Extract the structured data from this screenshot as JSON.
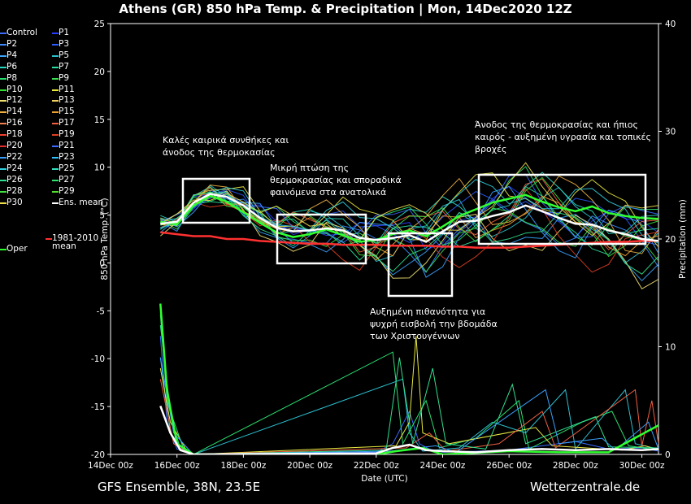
{
  "title": "Athens  (GR)  850 hPa Temp. & Precipitation | Mon, 14Dec2020 12Z",
  "footer_left": "GFS Ensemble, 38N, 23.5E",
  "footer_right": "Wetterzentrale.de",
  "legend": [
    {
      "label": "Control",
      "color": "#3a6cff"
    },
    {
      "label": "P1",
      "color": "#2a3cff"
    },
    {
      "label": "P2",
      "color": "#3a8cff"
    },
    {
      "label": "P3",
      "color": "#2a5cff"
    },
    {
      "label": "P4",
      "color": "#3aa6ff"
    },
    {
      "label": "P5",
      "color": "#2ac0d0"
    },
    {
      "label": "P6",
      "color": "#2ad8c0"
    },
    {
      "label": "P7",
      "color": "#2ae0a0"
    },
    {
      "label": "P8",
      "color": "#2ae070"
    },
    {
      "label": "P9",
      "color": "#3ae050"
    },
    {
      "label": "P10",
      "color": "#30e030"
    },
    {
      "label": "P11",
      "color": "#e8e840"
    },
    {
      "label": "P12",
      "color": "#f0e070"
    },
    {
      "label": "P13",
      "color": "#f0d060"
    },
    {
      "label": "P14",
      "color": "#f0b040"
    },
    {
      "label": "P15",
      "color": "#f0a030"
    },
    {
      "label": "P16",
      "color": "#f08050"
    },
    {
      "label": "P17",
      "color": "#f06040"
    },
    {
      "label": "P18",
      "color": "#f04030"
    },
    {
      "label": "P19",
      "color": "#e04020"
    },
    {
      "label": "P20",
      "color": "#e03030"
    },
    {
      "label": "P21",
      "color": "#3a6cff"
    },
    {
      "label": "P22",
      "color": "#3aa0ff"
    },
    {
      "label": "P23",
      "color": "#30c0ff"
    },
    {
      "label": "P24",
      "color": "#30d0e0"
    },
    {
      "label": "P25",
      "color": "#30e0c0"
    },
    {
      "label": "P26",
      "color": "#30e090"
    },
    {
      "label": "P27",
      "color": "#30e070"
    },
    {
      "label": "P28",
      "color": "#40e040"
    },
    {
      "label": "P29",
      "color": "#50e030"
    },
    {
      "label": "P30",
      "color": "#f0e050"
    },
    {
      "label": "Ens. mean",
      "color": "#ffffff"
    },
    {
      "label": "Oper",
      "color": "#30ff30"
    },
    {
      "label": "1981-2010 mean",
      "color": "#ff3030"
    }
  ],
  "annotations": [
    {
      "line1": "Καλές καιρικά συνθήκες και",
      "line2": "άνοδος της θερμοκασίας",
      "line3": ""
    },
    {
      "line1": "Μικρή πτώση της",
      "line2": "θερμοκρασίας και σποραδικά",
      "line3": "φαινόμενα στα ανατολικά"
    },
    {
      "line1": "Αυξημένη πιθανότητα για",
      "line2": "ψυχρή εισβολή την βδομάδα",
      "line3": "των Χριστουγέννων"
    },
    {
      "line1": "Άνοδος της θερμοκρασίας και ήπιος",
      "line2": "καιρός - αυξημένη υγρασία και τοπικές",
      "line3": "βροχές"
    }
  ],
  "chart_data": {
    "type": "line",
    "xlabel": "Date (UTC)",
    "ylabel": "850 hPa Temp. (°C)",
    "ylabel_right": "Precipitation (mm)",
    "ylim": [
      -20,
      25
    ],
    "ylim_right": [
      0,
      40
    ],
    "xlim_days": [
      0,
      16.5
    ],
    "x_ticks": [
      "14Dec 00z",
      "16Dec 00z",
      "18Dec 00z",
      "20Dec 00z",
      "22Dec 00z",
      "24Dec 00z",
      "26Dec 00z",
      "28Dec 00z",
      "30Dec 00z"
    ],
    "y_ticks": [
      25,
      20,
      15,
      10,
      5,
      0,
      -5,
      -10,
      -15,
      -20
    ],
    "y_ticks_right": [
      40,
      30,
      20,
      10,
      0
    ],
    "grid": false,
    "legend_placement": "left",
    "ens_mean": {
      "name": "Ens. mean",
      "points": [
        [
          1.5,
          4.1
        ],
        [
          2.0,
          4.3
        ],
        [
          2.5,
          6.3
        ],
        [
          3.0,
          7.2
        ],
        [
          3.5,
          6.9
        ],
        [
          4.0,
          6.0
        ],
        [
          4.5,
          4.7
        ],
        [
          5.0,
          3.7
        ],
        [
          5.5,
          3.3
        ],
        [
          6.0,
          3.4
        ],
        [
          6.5,
          3.6
        ],
        [
          7.0,
          3.4
        ],
        [
          7.5,
          2.6
        ],
        [
          8.0,
          2.4
        ],
        [
          8.5,
          2.6
        ],
        [
          9.0,
          2.9
        ],
        [
          9.5,
          2.2
        ],
        [
          10.0,
          3.3
        ],
        [
          10.5,
          4.3
        ],
        [
          11.0,
          4.4
        ],
        [
          11.5,
          4.9
        ],
        [
          12.0,
          5.3
        ],
        [
          12.5,
          6.0
        ],
        [
          13.0,
          5.4
        ],
        [
          13.5,
          4.7
        ],
        [
          14.0,
          4.1
        ],
        [
          14.5,
          4.0
        ],
        [
          15.0,
          3.4
        ],
        [
          15.5,
          3.0
        ],
        [
          16.0,
          2.5
        ],
        [
          16.5,
          2.3
        ]
      ]
    },
    "climatology": {
      "name": "1981-2010 mean",
      "points": [
        [
          1.5,
          3.2
        ],
        [
          2.0,
          3.0
        ],
        [
          2.5,
          2.8
        ],
        [
          3.0,
          2.8
        ],
        [
          3.5,
          2.5
        ],
        [
          4.0,
          2.5
        ],
        [
          4.5,
          2.3
        ],
        [
          5.0,
          2.2
        ],
        [
          5.5,
          2.1
        ],
        [
          6.0,
          2.0
        ],
        [
          6.5,
          2.0
        ],
        [
          7.0,
          1.9
        ],
        [
          7.5,
          1.9
        ],
        [
          8.0,
          1.9
        ],
        [
          8.5,
          1.8
        ],
        [
          9.0,
          1.8
        ],
        [
          9.5,
          1.8
        ],
        [
          10.0,
          1.7
        ],
        [
          10.5,
          1.7
        ],
        [
          11.0,
          1.6
        ],
        [
          11.5,
          1.6
        ],
        [
          12.0,
          1.6
        ],
        [
          12.5,
          1.7
        ],
        [
          13.0,
          1.8
        ],
        [
          13.5,
          1.9
        ],
        [
          14.0,
          2.0
        ],
        [
          14.5,
          2.1
        ],
        [
          15.0,
          2.2
        ],
        [
          15.5,
          2.2
        ],
        [
          16.0,
          2.3
        ],
        [
          16.5,
          2.3
        ]
      ]
    },
    "oper": {
      "name": "Oper",
      "points": [
        [
          1.5,
          4.3
        ],
        [
          2.0,
          4.0
        ],
        [
          2.5,
          6.0
        ],
        [
          3.0,
          7.0
        ],
        [
          3.5,
          6.4
        ],
        [
          4.0,
          5.3
        ],
        [
          4.5,
          4.2
        ],
        [
          5.0,
          3.2
        ],
        [
          5.5,
          2.7
        ],
        [
          6.0,
          3.0
        ],
        [
          6.5,
          3.5
        ],
        [
          7.0,
          2.9
        ],
        [
          7.5,
          2.2
        ],
        [
          8.0,
          2.4
        ],
        [
          8.5,
          3.0
        ],
        [
          9.0,
          3.4
        ],
        [
          9.5,
          2.8
        ],
        [
          10.0,
          3.8
        ],
        [
          10.5,
          4.9
        ],
        [
          11.0,
          5.6
        ],
        [
          11.5,
          6.3
        ],
        [
          12.0,
          6.7
        ],
        [
          12.5,
          7.1
        ],
        [
          13.0,
          6.4
        ],
        [
          13.5,
          5.8
        ],
        [
          14.0,
          5.4
        ],
        [
          14.5,
          5.9
        ],
        [
          15.0,
          5.2
        ],
        [
          15.5,
          4.9
        ],
        [
          16.0,
          4.7
        ],
        [
          16.5,
          4.6
        ]
      ]
    },
    "members": [
      {
        "name": "P1",
        "offset": 0.6,
        "amp": 1.6,
        "phase": 0.3
      },
      {
        "name": "P2",
        "offset": -0.8,
        "amp": 1.9,
        "phase": 1.1
      },
      {
        "name": "P3",
        "offset": 1.2,
        "amp": 1.4,
        "phase": 2.0
      },
      {
        "name": "P4",
        "offset": -1.5,
        "amp": 2.3,
        "phase": 2.7
      },
      {
        "name": "P5",
        "offset": 0.2,
        "amp": 2.6,
        "phase": 3.5
      },
      {
        "name": "P6",
        "offset": 1.8,
        "amp": 1.8,
        "phase": 4.2
      },
      {
        "name": "P7",
        "offset": -0.4,
        "amp": 2.1,
        "phase": 5.0
      },
      {
        "name": "P8",
        "offset": 0.9,
        "amp": 2.8,
        "phase": 5.7
      },
      {
        "name": "P9",
        "offset": -1.1,
        "amp": 1.5,
        "phase": 0.8
      },
      {
        "name": "P11",
        "offset": 2.3,
        "amp": 2.4,
        "phase": 1.6
      },
      {
        "name": "P12",
        "offset": -2.0,
        "amp": 2.7,
        "phase": 2.4
      },
      {
        "name": "P14",
        "offset": 1.4,
        "amp": 3.0,
        "phase": 3.1
      },
      {
        "name": "P15",
        "offset": -0.2,
        "amp": 1.7,
        "phase": 3.9
      },
      {
        "name": "P17",
        "offset": 0.7,
        "amp": 2.2,
        "phase": 4.6
      },
      {
        "name": "P19",
        "offset": -1.7,
        "amp": 2.9,
        "phase": 5.3
      },
      {
        "name": "P21",
        "offset": 1.0,
        "amp": 2.5,
        "phase": 6.0
      },
      {
        "name": "P22",
        "offset": -0.6,
        "amp": 3.2,
        "phase": 0.5
      },
      {
        "name": "P24",
        "offset": 2.0,
        "amp": 1.9,
        "phase": 1.9
      },
      {
        "name": "P26",
        "offset": -1.3,
        "amp": 2.0,
        "phase": 2.9
      },
      {
        "name": "P28",
        "offset": 0.4,
        "amp": 2.6,
        "phase": 4.4
      },
      {
        "name": "P30",
        "offset": 1.6,
        "amp": 2.3,
        "phase": 5.5
      }
    ],
    "precip": [
      {
        "name": "Control",
        "values": [
          [
            1.5,
            11
          ],
          [
            1.7,
            3
          ],
          [
            2.0,
            0.5
          ],
          [
            2.5,
            0
          ],
          [
            8.0,
            0.2
          ],
          [
            8.5,
            1
          ],
          [
            9.0,
            4
          ],
          [
            9.3,
            1
          ],
          [
            9.6,
            0.5
          ],
          [
            10.0,
            0.2
          ],
          [
            12.0,
            0.4
          ],
          [
            14.0,
            1.2
          ],
          [
            15.0,
            0.5
          ],
          [
            16.0,
            0.6
          ],
          [
            16.5,
            0.3
          ]
        ]
      },
      {
        "name": "P5",
        "values": [
          [
            1.5,
            9
          ],
          [
            1.8,
            2
          ],
          [
            2.2,
            0.4
          ],
          [
            2.5,
            0
          ],
          [
            8.8,
            7
          ],
          [
            9.0,
            2
          ],
          [
            9.4,
            0.3
          ],
          [
            10.5,
            0.6
          ],
          [
            11.5,
            3
          ],
          [
            12.5,
            2
          ],
          [
            13.7,
            6
          ],
          [
            14.0,
            0.5
          ],
          [
            15.5,
            6
          ],
          [
            15.8,
            1
          ],
          [
            16.5,
            0.5
          ]
        ]
      },
      {
        "name": "P8",
        "values": [
          [
            1.5,
            13
          ],
          [
            1.7,
            5
          ],
          [
            2.1,
            0.5
          ],
          [
            2.5,
            0
          ],
          [
            8.5,
            9.5
          ],
          [
            8.8,
            1
          ],
          [
            9.5,
            5
          ],
          [
            9.9,
            0.6
          ],
          [
            11.0,
            1.5
          ],
          [
            12.3,
            5
          ],
          [
            12.6,
            0.5
          ],
          [
            14.2,
            3
          ],
          [
            15.1,
            4
          ],
          [
            15.6,
            0.8
          ],
          [
            16.5,
            0.4
          ]
        ]
      },
      {
        "name": "P11",
        "values": [
          [
            1.5,
            8
          ],
          [
            1.8,
            3
          ],
          [
            2.3,
            0.3
          ],
          [
            2.5,
            0
          ],
          [
            8.6,
            0.8
          ],
          [
            9.0,
            3
          ],
          [
            9.2,
            11
          ],
          [
            9.4,
            2
          ],
          [
            10.2,
            1
          ],
          [
            12.8,
            2.5
          ],
          [
            13.3,
            0.8
          ],
          [
            15.4,
            0.4
          ],
          [
            16.1,
            0.8
          ],
          [
            16.5,
            0.4
          ]
        ]
      },
      {
        "name": "P17",
        "values": [
          [
            1.5,
            7
          ],
          [
            1.9,
            1
          ],
          [
            2.3,
            0.2
          ],
          [
            2.5,
            0
          ],
          [
            8.9,
            0.6
          ],
          [
            9.6,
            2
          ],
          [
            10.1,
            0.3
          ],
          [
            11.7,
            1
          ],
          [
            13.0,
            4
          ],
          [
            13.4,
            0.6
          ],
          [
            15.8,
            6
          ],
          [
            16.0,
            0.8
          ],
          [
            16.3,
            5
          ],
          [
            16.5,
            1
          ]
        ]
      },
      {
        "name": "P26",
        "values": [
          [
            1.5,
            12
          ],
          [
            1.8,
            4
          ],
          [
            2.2,
            0.5
          ],
          [
            2.5,
            0
          ],
          [
            8.3,
            0.4
          ],
          [
            8.7,
            9
          ],
          [
            9.1,
            1
          ],
          [
            9.7,
            8
          ],
          [
            10.1,
            1
          ],
          [
            11.3,
            0.5
          ],
          [
            12.1,
            6.5
          ],
          [
            12.5,
            1
          ],
          [
            14.6,
            3.5
          ],
          [
            15.0,
            0.7
          ],
          [
            16.5,
            0.6
          ]
        ]
      },
      {
        "name": "P22",
        "values": [
          [
            1.5,
            9
          ],
          [
            1.9,
            2
          ],
          [
            2.4,
            0.3
          ],
          [
            2.5,
            0
          ],
          [
            8.4,
            0.3
          ],
          [
            9.8,
            0.8
          ],
          [
            10.4,
            0.2
          ],
          [
            13.1,
            6
          ],
          [
            13.5,
            1
          ],
          [
            14.8,
            1.5
          ],
          [
            15.2,
            0.4
          ],
          [
            16.2,
            3
          ],
          [
            16.5,
            0.5
          ]
        ]
      }
    ],
    "precip_ens_mean": {
      "name": "Ens. mean",
      "values": [
        [
          1.5,
          4.5
        ],
        [
          1.8,
          2
        ],
        [
          2.1,
          0.4
        ],
        [
          2.5,
          0
        ],
        [
          8.0,
          0.1
        ],
        [
          8.5,
          0.6
        ],
        [
          9.0,
          0.9
        ],
        [
          9.5,
          0.4
        ],
        [
          10.0,
          0.3
        ],
        [
          11.0,
          0.2
        ],
        [
          12.0,
          0.4
        ],
        [
          13.0,
          0.5
        ],
        [
          14.0,
          0.4
        ],
        [
          15.0,
          0.5
        ],
        [
          16.0,
          0.4
        ],
        [
          16.5,
          0.5
        ]
      ]
    },
    "precip_oper": {
      "name": "Oper",
      "values": [
        [
          1.5,
          14
        ],
        [
          1.7,
          6
        ],
        [
          2.0,
          1
        ],
        [
          2.5,
          0
        ],
        [
          8.0,
          0
        ],
        [
          8.6,
          0.3
        ],
        [
          9.4,
          0.6
        ],
        [
          10.0,
          0
        ],
        [
          12.0,
          0.3
        ],
        [
          13.5,
          0.2
        ],
        [
          15.0,
          0.2
        ],
        [
          16.5,
          2.7
        ]
      ]
    }
  }
}
